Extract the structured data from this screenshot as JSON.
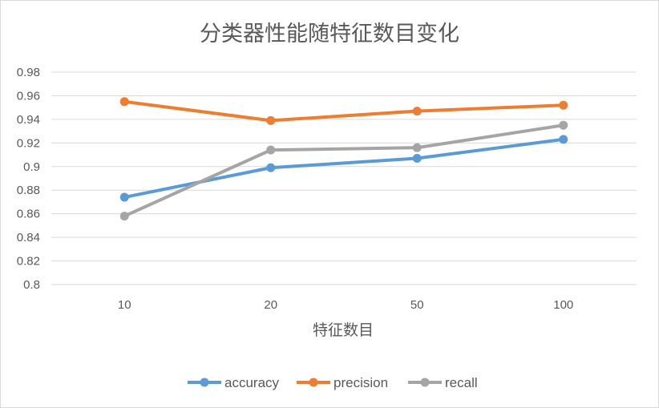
{
  "chart_data": {
    "type": "line",
    "title": "分类器性能随特征数目变化",
    "xlabel": "特征数目",
    "ylabel": "",
    "categories": [
      "10",
      "20",
      "50",
      "100"
    ],
    "ylim": [
      0.8,
      0.98
    ],
    "yticks": [
      "0.98",
      "0.96",
      "0.94",
      "0.92",
      "0.9",
      "0.88",
      "0.86",
      "0.84",
      "0.82",
      "0.8"
    ],
    "grid": true,
    "legend_position": "bottom",
    "series": [
      {
        "name": "accuracy",
        "color": "#5b9bd5",
        "values": [
          0.874,
          0.899,
          0.907,
          0.923
        ]
      },
      {
        "name": "precision",
        "color": "#ed7d31",
        "values": [
          0.955,
          0.939,
          0.947,
          0.952
        ]
      },
      {
        "name": "recall",
        "color": "#a5a5a5",
        "values": [
          0.858,
          0.914,
          0.916,
          0.935
        ]
      }
    ]
  }
}
